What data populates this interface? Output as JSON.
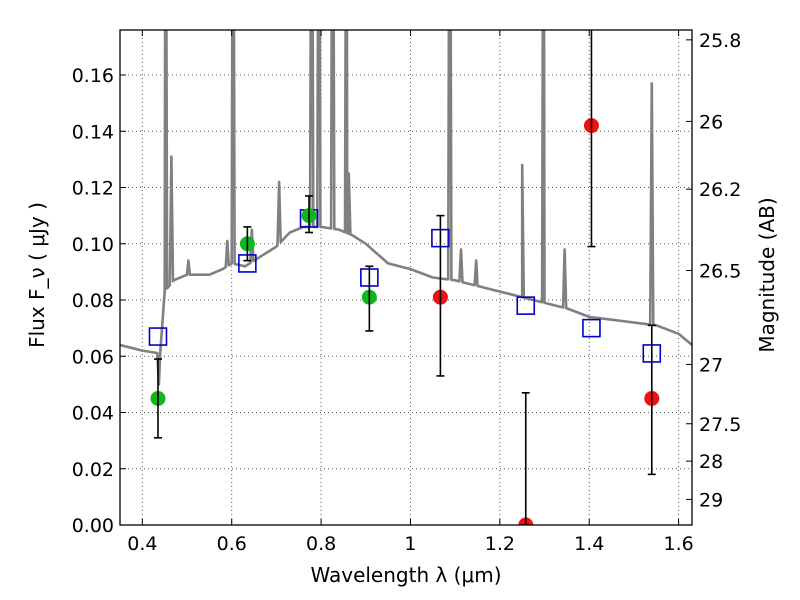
{
  "chart_data": {
    "type": "scatter",
    "xlabel": "Wavelength  λ (μm)",
    "ylabel": "Flux  F_ν  ( μJy )",
    "ylabel_right": "Magnitude (AB)",
    "xlim": [
      0.35,
      1.63
    ],
    "ylim": [
      0.0,
      0.176
    ],
    "grid": true,
    "x_ticks": [
      0.4,
      0.6,
      0.8,
      1.0,
      1.2,
      1.4,
      1.6
    ],
    "x_tick_labels": [
      "0.4",
      "0.6",
      "0.8",
      "1",
      "1.2",
      "1.4",
      "1.6"
    ],
    "y_ticks": [
      0.0,
      0.02,
      0.04,
      0.06,
      0.08,
      0.1,
      0.12,
      0.14,
      0.16
    ],
    "y_tick_labels": [
      "0.00",
      "0.02",
      "0.04",
      "0.06",
      "0.08",
      "0.10",
      "0.12",
      "0.14",
      "0.16"
    ],
    "right_ticks": [
      {
        "label": "25.8",
        "flux": 0.1725
      },
      {
        "label": "26",
        "flux": 0.1435
      },
      {
        "label": "26.2",
        "flux": 0.1194
      },
      {
        "label": "26.5",
        "flux": 0.0905
      },
      {
        "label": "27",
        "flux": 0.0571
      },
      {
        "label": "27.5",
        "flux": 0.036
      },
      {
        "label": "28",
        "flux": 0.0227
      },
      {
        "label": "29",
        "flux": 0.0091
      }
    ],
    "colors": {
      "spectrum": "#808080",
      "model": "#0000cc",
      "detected": "#11b51c",
      "upper": "#ee1111",
      "grid": "#555555",
      "errorbar": "#000000"
    },
    "spectrum": {
      "continuum": [
        [
          0.35,
          0.064
        ],
        [
          0.4,
          0.062
        ],
        [
          0.44,
          0.061
        ],
        [
          0.45,
          0.083
        ],
        [
          0.47,
          0.087
        ],
        [
          0.5,
          0.089
        ],
        [
          0.55,
          0.089
        ],
        [
          0.58,
          0.091
        ],
        [
          0.6,
          0.093
        ],
        [
          0.63,
          0.092
        ],
        [
          0.66,
          0.095
        ],
        [
          0.7,
          0.099
        ],
        [
          0.73,
          0.104
        ],
        [
          0.76,
          0.106
        ],
        [
          0.8,
          0.106
        ],
        [
          0.84,
          0.105
        ],
        [
          0.87,
          0.103
        ],
        [
          0.9,
          0.1
        ],
        [
          0.95,
          0.093
        ],
        [
          1.0,
          0.091
        ],
        [
          1.05,
          0.088
        ],
        [
          1.1,
          0.087
        ],
        [
          1.15,
          0.085
        ],
        [
          1.2,
          0.083
        ],
        [
          1.25,
          0.081
        ],
        [
          1.3,
          0.079
        ],
        [
          1.35,
          0.077
        ],
        [
          1.4,
          0.074
        ],
        [
          1.45,
          0.073
        ],
        [
          1.5,
          0.072
        ],
        [
          1.55,
          0.071
        ],
        [
          1.6,
          0.068
        ],
        [
          1.63,
          0.064
        ]
      ],
      "emission_lines": [
        [
          0.437,
          0.05
        ],
        [
          0.452,
          0.3
        ],
        [
          0.465,
          0.131
        ],
        [
          0.503,
          0.094
        ],
        [
          0.59,
          0.101
        ],
        [
          0.603,
          0.3
        ],
        [
          0.645,
          0.105
        ],
        [
          0.706,
          0.122
        ],
        [
          0.779,
          0.3
        ],
        [
          0.795,
          0.3
        ],
        [
          0.826,
          0.3
        ],
        [
          0.857,
          0.3
        ],
        [
          0.862,
          0.125
        ],
        [
          1.088,
          0.3
        ],
        [
          1.113,
          0.098
        ],
        [
          1.147,
          0.094
        ],
        [
          1.25,
          0.128
        ],
        [
          1.298,
          0.3
        ],
        [
          1.345,
          0.098
        ],
        [
          1.54,
          0.157
        ]
      ]
    },
    "series": [
      {
        "marker": "open-square",
        "points": [
          [
            0.435,
            0.067
          ],
          [
            0.635,
            0.093
          ],
          [
            0.773,
            0.109
          ],
          [
            0.908,
            0.088
          ],
          [
            1.067,
            0.102
          ],
          [
            1.258,
            0.078
          ],
          [
            1.405,
            0.07
          ],
          [
            1.54,
            0.061
          ]
        ]
      },
      {
        "marker": "filled-circle-green",
        "points": [
          {
            "x": 0.435,
            "y": 0.045,
            "lo": 0.031,
            "hi": 0.059
          },
          {
            "x": 0.635,
            "y": 0.1,
            "lo": 0.094,
            "hi": 0.106
          },
          {
            "x": 0.773,
            "y": 0.11,
            "lo": 0.104,
            "hi": 0.117
          },
          {
            "x": 0.908,
            "y": 0.081,
            "lo": 0.069,
            "hi": 0.092
          }
        ]
      },
      {
        "marker": "filled-circle-red",
        "points": [
          {
            "x": 1.067,
            "y": 0.081,
            "lo": 0.053,
            "hi": 0.11
          },
          {
            "x": 1.258,
            "y": 0.0,
            "lo": 0.0,
            "hi": 0.047
          },
          {
            "x": 1.405,
            "y": 0.142,
            "lo": 0.099,
            "hi": 0.2
          },
          {
            "x": 1.54,
            "y": 0.045,
            "lo": 0.018,
            "hi": 0.071
          }
        ]
      }
    ]
  }
}
